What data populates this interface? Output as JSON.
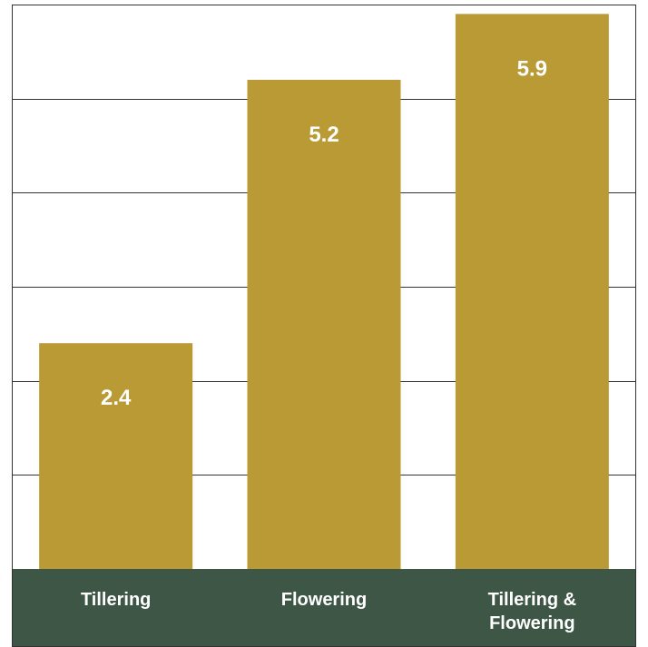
{
  "chart_data": {
    "type": "bar",
    "categories": [
      "Tillering",
      "Flowering",
      "Tillering & Flowering"
    ],
    "category_lines": [
      [
        "Tillering"
      ],
      [
        "Flowering"
      ],
      [
        "Tillering &",
        "Flowering"
      ]
    ],
    "values": [
      2.4,
      5.2,
      5.9
    ],
    "data_labels": [
      "2.4",
      "5.2",
      "5.9"
    ],
    "title": "",
    "xlabel": "",
    "ylabel": "",
    "ylim": [
      0,
      6
    ],
    "grid": true,
    "legend": "none"
  },
  "colors": {
    "bar": "#b99a35",
    "footer": "#3e5646",
    "grid": "#333333",
    "frame": "#333333",
    "label_text": "#ffffff",
    "background": "#ffffff"
  }
}
